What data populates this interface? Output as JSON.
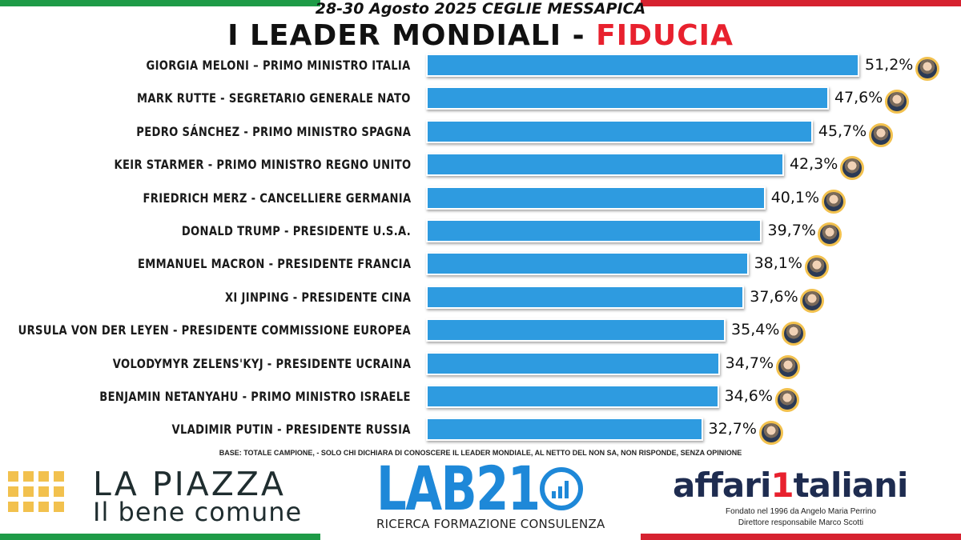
{
  "header": {
    "date_location": "28-30 Agosto 2025 CEGLIE MESSAPICA",
    "title_main": "I LEADER MONDIALI - ",
    "title_accent": "FIDUCIA"
  },
  "colors": {
    "bar": "#2e9be0",
    "accent_red": "#e8212e",
    "flag_green": "#1e9b47",
    "flag_white": "#ffffff",
    "flag_red": "#d62230",
    "avatar_ring": "#f2c14e",
    "lab_blue": "#1e88d8",
    "aff_navy": "#1e2c50"
  },
  "chart_data": {
    "type": "bar",
    "orientation": "horizontal",
    "categories": [
      "GIORGIA MELONI – PRIMO MINISTRO ITALIA",
      "MARK RUTTE - SEGRETARIO GENERALE  NATO",
      "PEDRO SÁNCHEZ - PRIMO MINISTRO SPAGNA",
      "KEIR STARMER - PRIMO MINISTRO REGNO UNITO",
      "FRIEDRICH MERZ - CANCELLIERE GERMANIA",
      "DONALD TRUMP - PRESIDENTE U.S.A.",
      "EMMANUEL MACRON - PRESIDENTE FRANCIA",
      "XI JINPING - PRESIDENTE CINA",
      "URSULA VON DER LEYEN - PRESIDENTE COMMISSIONE EUROPEA",
      "VOLODYMYR ZELENS'KYJ - PRESIDENTE UCRAINA",
      "BENJAMIN NETANYAHU - PRIMO MINISTRO ISRAELE",
      "VLADIMIR PUTIN - PRESIDENTE  RUSSIA"
    ],
    "values": [
      51.2,
      47.6,
      45.7,
      42.3,
      40.1,
      39.7,
      38.1,
      37.6,
      35.4,
      34.7,
      34.6,
      32.7
    ],
    "value_labels": [
      "51,2%",
      "47,6%",
      "45,7%",
      "42,3%",
      "40,1%",
      "39,7%",
      "38,1%",
      "37,6%",
      "35,4%",
      "34,7%",
      "34,6%",
      "32,7%"
    ],
    "unit": "%",
    "xlim": [
      0,
      51.2
    ],
    "grid": false
  },
  "footer": {
    "base_note": "BASE: TOTALE CAMPIONE, - SOLO CHI DICHIARA DI CONOSCERE IL LEADER MONDIALE, AL NETTO DEL NON SA, NON RISPONDE, SENZA OPINIONE",
    "piazza_line1": "LA PIAZZA",
    "piazza_line2": "Il bene comune",
    "lab_name": "LAB21",
    "lab_tagline": "RICERCA FORMAZIONE CONSULENZA",
    "aff_name_a": "affari",
    "aff_name_b": "1",
    "aff_name_c": "taliani",
    "aff_founded": "Fondato nel 1996 da Angelo Maria Perrino",
    "aff_director": "Direttore responsabile Marco Scotti"
  },
  "icons": {
    "leader_photo": "leader-portrait-icon",
    "lab_logo_mark": "bar-chart-circle-icon",
    "piazza_logo_mark": "dot-grid-icon"
  }
}
